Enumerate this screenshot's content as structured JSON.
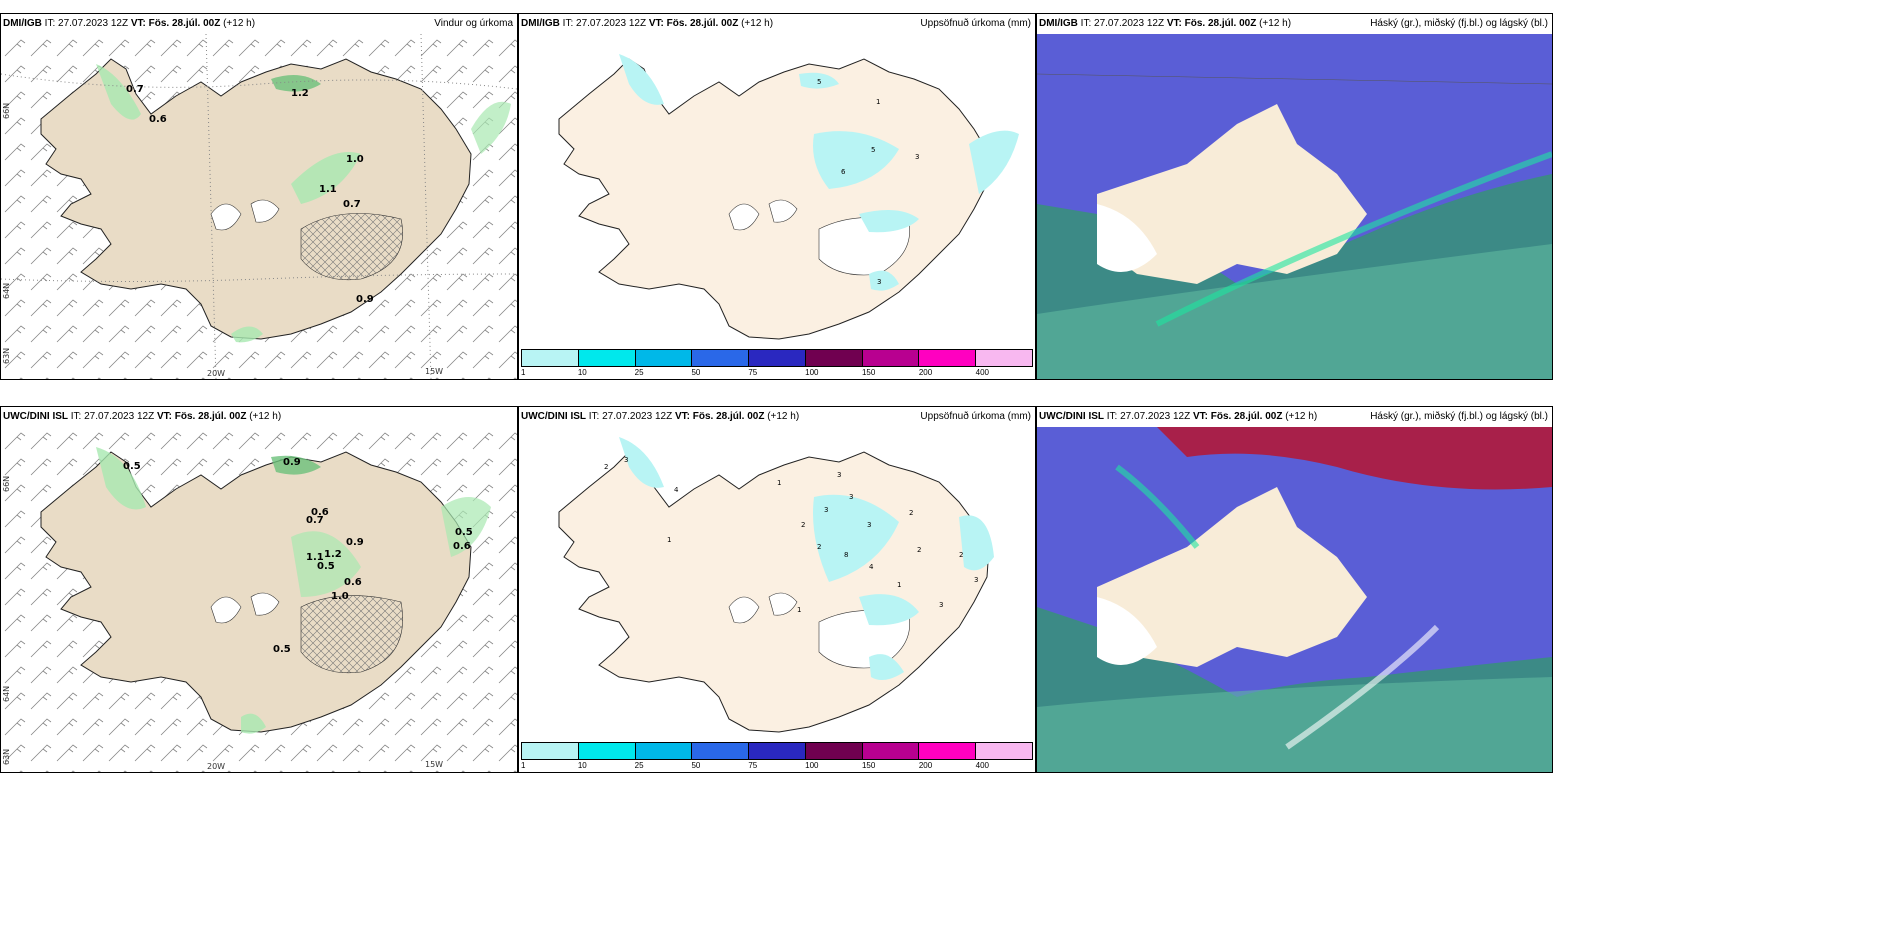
{
  "panels": [
    {
      "model": "DMI/IGB",
      "it": " IT: 27.07.2023 12Z ",
      "vt_label": "VT: Fös. 28.júl. 00Z",
      "lead": " (+12 h)",
      "product": "Vindur og úrkoma",
      "type": "wind"
    },
    {
      "model": "DMI/IGB",
      "it": " IT: 27.07.2023 12Z ",
      "vt_label": "VT: Fös. 28.júl. 00Z",
      "lead": " (+12 h)",
      "product": "Uppsöfnuð úrkoma (mm)",
      "type": "accum"
    },
    {
      "model": "DMI/IGB",
      "it": " IT: 27.07.2023 12Z ",
      "vt_label": "VT: Fös. 28.júl. 00Z",
      "lead": " (+12 h)",
      "product": "Háský (gr.), miðský (fj.bl.) og lágský (bl.)",
      "type": "cloud"
    },
    {
      "model": "UWC/DINI ISL",
      "it": " IT: 27.07.2023 12Z ",
      "vt_label": "VT: Fös. 28.júl. 00Z",
      "lead": " (+12 h)",
      "product": "",
      "type": "wind"
    },
    {
      "model": "UWC/DINI ISL",
      "it": " IT: 27.07.2023 12Z ",
      "vt_label": "VT: Fös. 28.júl. 00Z",
      "lead": " (+12 h)",
      "product": "Uppsöfnuð úrkoma (mm)",
      "type": "accum"
    },
    {
      "model": "UWC/DINI ISL",
      "it": " IT: 27.07.2023 12Z ",
      "vt_label": "VT: Fös. 28.júl. 00Z",
      "lead": " (+12 h)",
      "product": "Háský (gr.), miðský (fj.bl.) og lágský (bl.)",
      "type": "cloud"
    }
  ],
  "grid_labels": {
    "lat_66": "66N",
    "lat_64": "64N",
    "lat_63": "63N",
    "lon_20": "20W",
    "lon_15": "15W"
  },
  "precip_labels": {
    "dmi": [
      "0.7",
      "0.6",
      "1.2",
      "1.0",
      "1.1",
      "0.7",
      "0.9"
    ],
    "uwc": [
      "0.5",
      "0.9",
      "0.6",
      "0.7",
      "0.9",
      "1.1",
      "1.2",
      "0.5",
      "0.6",
      "1.0",
      "0.5",
      "0.6",
      "0.5"
    ]
  },
  "accum_labels": {
    "dmi": [
      "5",
      "1",
      "5",
      "3",
      "6",
      "3"
    ],
    "uwc": [
      "2",
      "3",
      "4",
      "1",
      "1",
      "3",
      "3",
      "3",
      "2",
      "2",
      "8",
      "3",
      "4",
      "1",
      "2",
      "2",
      "3",
      "2",
      "3",
      "1"
    ]
  },
  "legend": {
    "colors": [
      "#b8f4f4",
      "#00e8ec",
      "#00b8e8",
      "#2a68e8",
      "#2a28c0",
      "#700050",
      "#b80090",
      "#ff00c0",
      "#f8b8f0"
    ],
    "ticks": [
      "1",
      "10",
      "25",
      "50",
      "75",
      "100",
      "150",
      "200",
      "400"
    ]
  },
  "colors": {
    "land": "#e9dcc6",
    "land_cream": "#fbf0e2",
    "precip_green": "#a8e8b0",
    "cloud_low": "#3c8a86",
    "cloud_mid": "#5a5ed6",
    "cloud_high": "#a8204a"
  }
}
